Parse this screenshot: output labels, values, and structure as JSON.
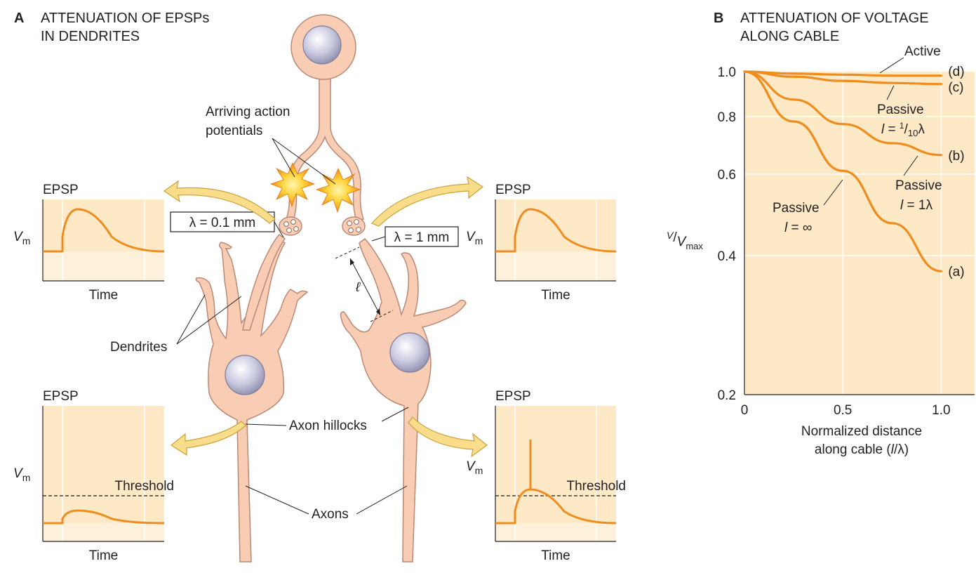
{
  "panel_a": {
    "letter": "A",
    "title_line1": "ATTENUATION OF EPSPs",
    "title_line2": "IN DENDRITES",
    "arriving_line1": "Arriving action",
    "arriving_line2": "potentials",
    "lambda_short": "λ = 0.1 mm",
    "lambda_long": "λ = 1 mm",
    "length_symbol": "ℓ",
    "dendrites_label": "Dendrites",
    "axon_hillocks_label": "Axon hillocks",
    "axons_label": "Axons",
    "plots": {
      "epsp": "EPSP",
      "time": "Time",
      "vm_base": "V",
      "vm_sub": "m",
      "threshold": "Threshold"
    }
  },
  "panel_b": {
    "letter": "B",
    "title_line1": "ATTENUATION OF VOLTAGE",
    "title_line2": "ALONG CABLE",
    "chart_data": {
      "type": "line",
      "xlabel_line1": "Normalized distance",
      "xlabel_line2_pre": "along cable (",
      "xlabel_line2_var": "l",
      "xlabel_line2_post": "/λ)",
      "ylabel_num": "V",
      "ylabel_den": "V",
      "ylabel_sub": "max",
      "y_scale": "log",
      "xlim": [
        0,
        1.0
      ],
      "ylim": [
        0.2,
        1.0
      ],
      "x_ticks": [
        "0",
        "0.5",
        "1.0"
      ],
      "y_ticks": [
        "1.0",
        "0.8",
        "0.6",
        "0.4",
        "0.2"
      ],
      "x_tick_values": [
        0,
        0.5,
        1.0
      ],
      "y_tick_values": [
        1.0,
        0.8,
        0.6,
        0.4,
        0.2
      ],
      "grid": true,
      "series": [
        {
          "id": "d",
          "tag": "(d)",
          "x": [
            0,
            0.25,
            0.5,
            0.75,
            1.0
          ],
          "y": [
            1.0,
            0.99,
            0.985,
            0.98,
            0.98
          ]
        },
        {
          "id": "c",
          "tag": "(c)",
          "x": [
            0,
            0.25,
            0.5,
            0.75,
            1.0
          ],
          "y": [
            1.0,
            0.975,
            0.955,
            0.945,
            0.94
          ]
        },
        {
          "id": "b",
          "tag": "(b)",
          "x": [
            0,
            0.25,
            0.5,
            0.75,
            1.0
          ],
          "y": [
            1.0,
            0.87,
            0.77,
            0.7,
            0.66
          ]
        },
        {
          "id": "a",
          "tag": "(a)",
          "x": [
            0,
            0.25,
            0.5,
            0.75,
            1.0
          ],
          "y": [
            1.0,
            0.78,
            0.61,
            0.47,
            0.37
          ]
        }
      ],
      "annotations": {
        "active": "Active",
        "passive": "Passive",
        "c_pre": "l",
        "c_eq": " = ",
        "c_num": "1",
        "c_den": "10",
        "c_lambda": "λ",
        "b_pre": "l",
        "b_rest": " = 1λ",
        "a_pre": "l",
        "a_rest": " = ∞"
      }
    }
  },
  "colors": {
    "orange": "#ef8c1e",
    "plot_bg": "#fde9c6",
    "plot_bg_light": "#fef1dc",
    "cell_fill": "#f9cdb3",
    "cell_stroke": "#b98877",
    "nucleus": "#d3d3e4",
    "arrow_fill": "#f9dd8a",
    "arrow_stroke": "#c9a23a",
    "spark": "#f4a623"
  }
}
